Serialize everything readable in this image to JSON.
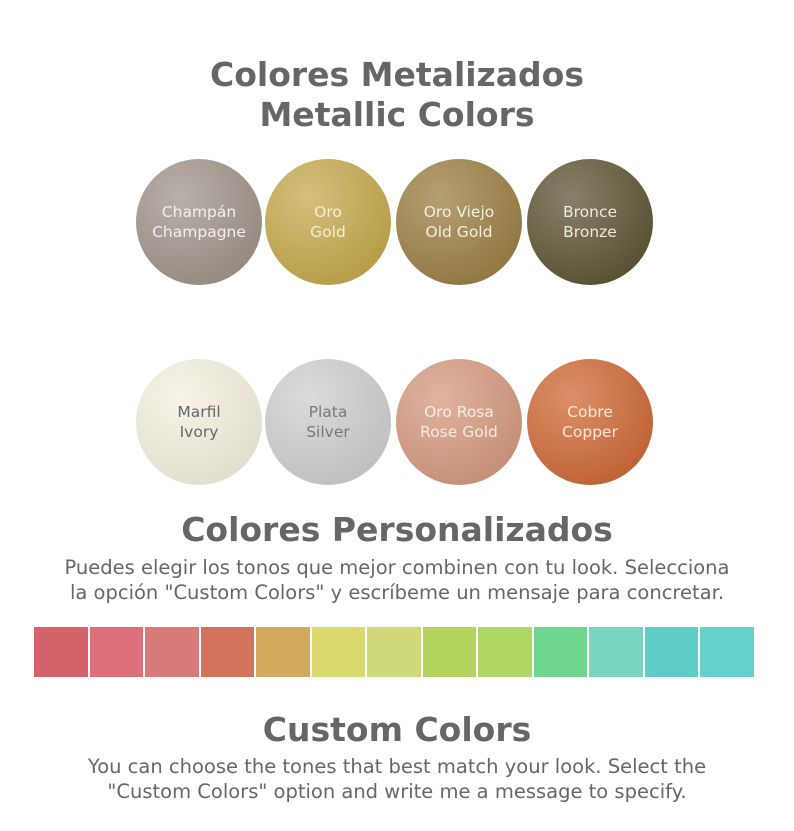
{
  "metallic": {
    "title_es": "Colores Metalizados",
    "title_en": "Metallic Colors",
    "swatches": [
      {
        "es": "Champán",
        "en": "Champagne",
        "color": "#a1958c",
        "text": "#f2f0ee"
      },
      {
        "es": "Oro",
        "en": "Gold",
        "color": "#c6a94e",
        "text": "#f6efd6"
      },
      {
        "es": "Oro Viejo",
        "en": "Old Gold",
        "color": "#9c8046",
        "text": "#f5efe2"
      },
      {
        "es": "Bronce",
        "en": "Bronze",
        "color": "#605536",
        "text": "#eeebe3"
      },
      {
        "es": "Marfil",
        "en": "Ivory",
        "color": "#f4f0df",
        "text": "#666666"
      },
      {
        "es": "Plata",
        "en": "Silver",
        "color": "#cfcfd2",
        "text": "#777777"
      },
      {
        "es": "Oro Rosa",
        "en": "Rose Gold",
        "color": "#d59a80",
        "text": "#faece6"
      },
      {
        "es": "Cobre",
        "en": "Copper",
        "color": "#cf6a38",
        "text": "#fbe9df"
      }
    ]
  },
  "custom_es": {
    "title": "Colores Personalizados",
    "line1": "Puedes elegir los tonos que mejor combinen con tu look. Selecciona",
    "line2": "la opción \"Custom Colors\" y escríbeme un mensaje para concretar."
  },
  "palette": [
    "#d5616b",
    "#dc6f79",
    "#d97a7a",
    "#d2735b",
    "#d2aa5e",
    "#dbd86e",
    "#cfd97a",
    "#b2d35c",
    "#b0d763",
    "#6fd690",
    "#7bd6c0",
    "#5ecdc6",
    "#64d1cd"
  ],
  "custom_en": {
    "title": "Custom Colors",
    "line1": "You can choose the tones that best match your look. Select the",
    "line2": "\"Custom Colors\" option and write me a message to specify."
  }
}
